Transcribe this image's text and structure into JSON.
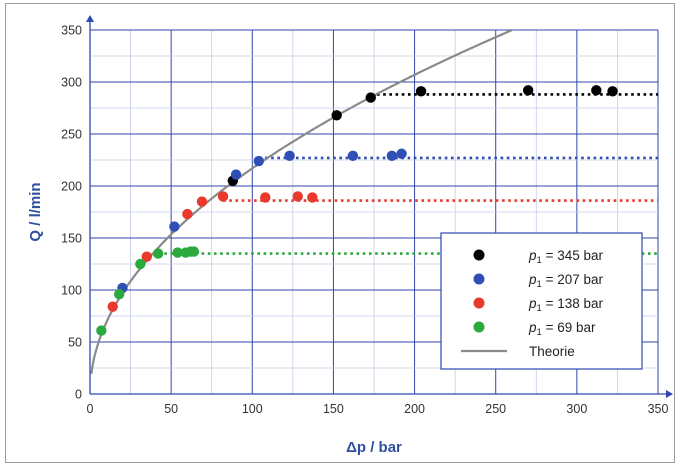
{
  "chart_data": {
    "type": "scatter",
    "xlabel": "Δp / bar",
    "ylabel": "Q / l/min",
    "xlim": [
      0,
      350
    ],
    "ylim": [
      0,
      350
    ],
    "xticks": [
      0,
      50,
      100,
      150,
      200,
      250,
      300,
      350
    ],
    "yticks": [
      0,
      50,
      100,
      150,
      200,
      250,
      300,
      350
    ],
    "xtick_labels": [
      "0",
      "50",
      "100",
      "150",
      "200",
      "250",
      "300",
      "350"
    ],
    "ytick_labels": [
      "0",
      "50",
      "100",
      "150",
      "200",
      "250",
      "300",
      "350"
    ],
    "grid": true,
    "legend_position": "bottom-right",
    "legend_prefix": "p",
    "legend_subscript": "1",
    "series": [
      {
        "name": "= 345 bar",
        "color": "#000000",
        "points": [
          [
            88,
            205
          ],
          [
            152,
            268
          ],
          [
            173,
            285
          ],
          [
            204,
            291
          ],
          [
            270,
            292
          ],
          [
            312,
            292
          ],
          [
            322,
            291
          ]
        ],
        "plateau": {
          "y": 288,
          "x_from": 173,
          "x_to": 350
        }
      },
      {
        "name": "= 207 bar",
        "color": "#2f4fb5",
        "points": [
          [
            20,
            102
          ],
          [
            52,
            161
          ],
          [
            90,
            211
          ],
          [
            104,
            224
          ],
          [
            123,
            229
          ],
          [
            162,
            229
          ],
          [
            186,
            229
          ],
          [
            192,
            231
          ]
        ],
        "plateau": {
          "y": 227,
          "x_from": 104,
          "x_to": 350
        }
      },
      {
        "name": "= 138 bar",
        "color": "#e8392c",
        "points": [
          [
            14,
            84
          ],
          [
            35,
            132
          ],
          [
            60,
            173
          ],
          [
            69,
            185
          ],
          [
            82,
            190
          ],
          [
            108,
            189
          ],
          [
            128,
            190
          ],
          [
            137,
            189
          ]
        ],
        "plateau": {
          "y": 186,
          "x_from": 82,
          "x_to": 350
        }
      },
      {
        "name": "= 69 bar",
        "color": "#2aaa3e",
        "points": [
          [
            7,
            61
          ],
          [
            18,
            96
          ],
          [
            31,
            125
          ],
          [
            42,
            135
          ],
          [
            54,
            136
          ],
          [
            59,
            136
          ],
          [
            62,
            137
          ],
          [
            64,
            137
          ]
        ],
        "plateau": {
          "y": 135,
          "x_from": 42,
          "x_to": 350
        }
      }
    ],
    "theory": {
      "name": "Theorie",
      "color": "#8a8a8a",
      "k": 21.7,
      "x_from": 0.8,
      "x_to": 350
    }
  }
}
